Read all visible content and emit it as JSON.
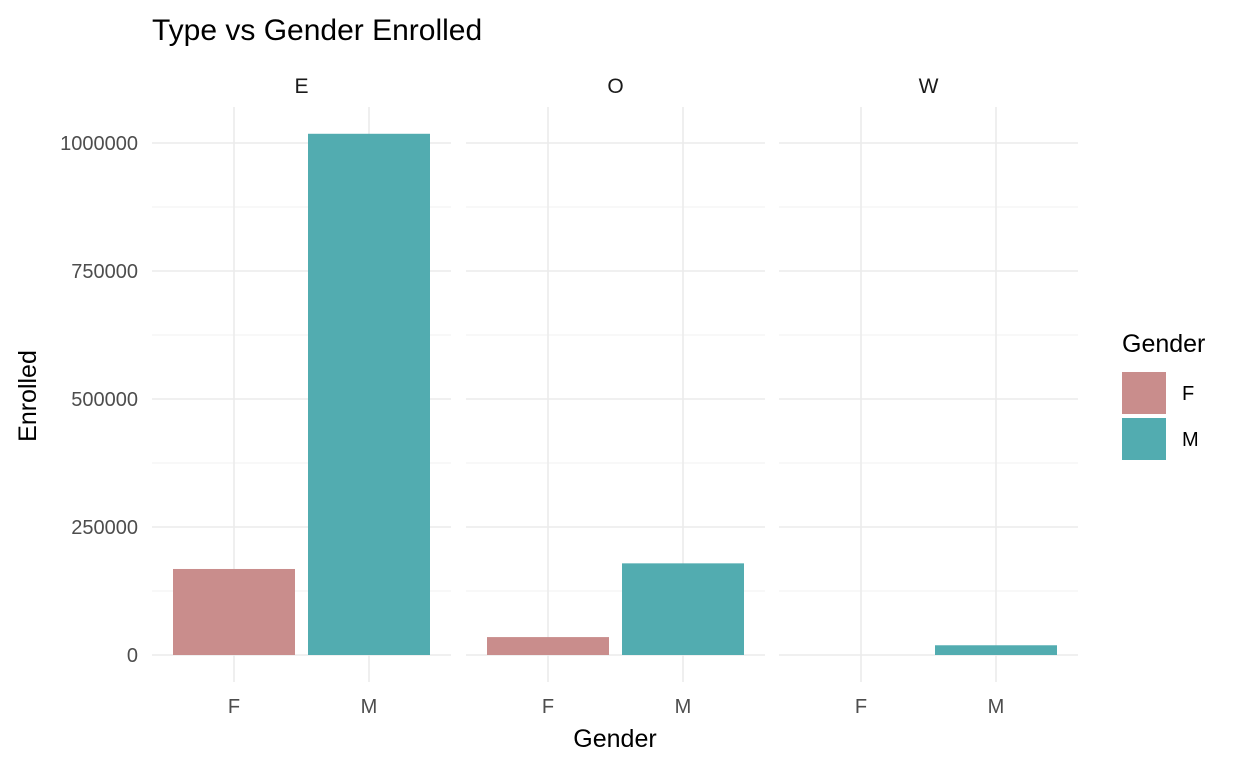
{
  "chart_data": {
    "type": "bar",
    "title": "Type vs Gender Enrolled",
    "xlabel": "Gender",
    "ylabel": "Enrolled",
    "facets": [
      "E",
      "O",
      "W"
    ],
    "categories": [
      "F",
      "M"
    ],
    "series": [
      {
        "facet": "E",
        "values": [
          168000,
          1018000
        ]
      },
      {
        "facet": "O",
        "values": [
          35000,
          179000
        ]
      },
      {
        "facet": "W",
        "values": [
          0,
          19000
        ]
      }
    ],
    "yticks": [
      0,
      250000,
      500000,
      750000,
      1000000
    ],
    "ytick_labels": [
      "0",
      "250000",
      "500000",
      "750000",
      "1000000"
    ],
    "ylim": [
      0,
      1070000
    ],
    "grid": true,
    "legend": {
      "title": "Gender",
      "placement": "right",
      "items": [
        {
          "label": "F",
          "color": "#C98D8C"
        },
        {
          "label": "M",
          "color": "#52ACB0"
        }
      ]
    },
    "colors": {
      "F": "#C98D8C",
      "M": "#52ACB0"
    }
  }
}
